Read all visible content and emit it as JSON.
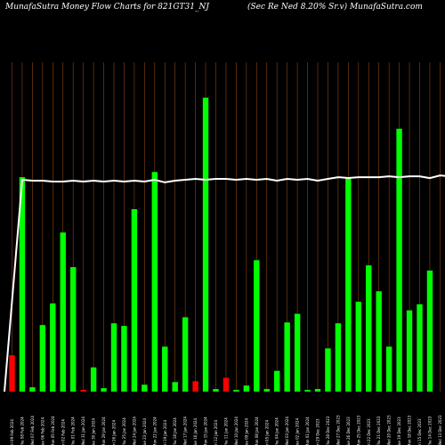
{
  "header": {
    "left": "MunafaSutra  Money Flow  Charts for 821GT31_NJ",
    "right": "(Sec Re   Ned 8.20% Sr.v) MunafaSutra.com"
  },
  "chart_data": {
    "type": "bar",
    "colors": {
      "up": "#00ff00",
      "down": "#ff0000",
      "grid": "#8b4513",
      "line": "#ffffff"
    },
    "categories": [
      "Fri 09 Feb 2024",
      "Thu 08 Feb 2024",
      "Wed 07 Feb 2024",
      "Tue 06 Feb 2024",
      "Mon 05 Feb 2024",
      "Fri 02 Feb 2024",
      "Thu 01 Feb 2024",
      "Wed 31 Jan 2024",
      "Tue 30 Jan 2024",
      "Mon 29 Jan 2024",
      "Fri 26 Jan 2024",
      "Thu 25 Jan 2024",
      "Wed 24 Jan 2024",
      "Tue 23 Jan 2024",
      "Mon 22 Jan 2024",
      "Fri 19 Jan 2024",
      "Thu 18 Jan 2024",
      "Wed 17 Jan 2024",
      "Tue 16 Jan 2024",
      "Mon 15 Jan 2024",
      "Fri 12 Jan 2024",
      "Thu 11 Jan 2024",
      "Wed 10 Jan 2024",
      "Tue 09 Jan 2024",
      "Mon 08 Jan 2024",
      "Fri 05 Jan 2024",
      "Thu 04 Jan 2024",
      "Wed 03 Jan 2024",
      "Tue 02 Jan 2024",
      "Mon 01 Jan 2024",
      "Fri 29 Dec 2023",
      "Thu 28 Dec 2023",
      "Wed 27 Dec 2023",
      "Tue 26 Dec 2023",
      "Mon 25 Dec 2023",
      "Fri 22 Dec 2023",
      "Thu 21 Dec 2023",
      "Wed 20 Dec 2023",
      "Tue 19 Dec 2023",
      "Mon 18 Dec 2023",
      "Fri 15 Dec 2023",
      "Thu 14 Dec 2023",
      "Wed 13 Dec 2023",
      "Tue 12 Dec 2023",
      "Mon 11 Dec 2023"
    ],
    "values": [
      42,
      248,
      5,
      77,
      102,
      184,
      144,
      2,
      28,
      4,
      79,
      76,
      211,
      8,
      254,
      52,
      11,
      86,
      12,
      340,
      3,
      16,
      2,
      7,
      152,
      3,
      24,
      80,
      90,
      2,
      3,
      50,
      79,
      248,
      104,
      146,
      116,
      52,
      304,
      94,
      101,
      140,
      0,
      0,
      0
    ],
    "direction": [
      "down",
      "up",
      "up",
      "up",
      "up",
      "up",
      "up",
      "down",
      "up",
      "up",
      "up",
      "up",
      "up",
      "up",
      "up",
      "up",
      "up",
      "up",
      "down",
      "up",
      "up",
      "down",
      "up",
      "up",
      "up",
      "up",
      "up",
      "up",
      "up",
      "up",
      "up",
      "up",
      "up",
      "up",
      "up",
      "up",
      "up",
      "up",
      "up",
      "up",
      "up",
      "up",
      "up",
      "up",
      "up"
    ],
    "line": [
      0,
      245,
      244,
      244,
      243,
      243,
      244,
      243,
      244,
      243,
      244,
      243,
      244,
      243,
      245,
      242,
      244,
      245,
      246,
      245,
      246,
      246,
      245,
      246,
      245,
      246,
      244,
      246,
      245,
      246,
      244,
      246,
      248,
      247,
      248,
      248,
      248,
      249,
      248,
      249,
      249,
      247,
      250,
      249,
      249
    ],
    "ylim": [
      0,
      350
    ]
  }
}
